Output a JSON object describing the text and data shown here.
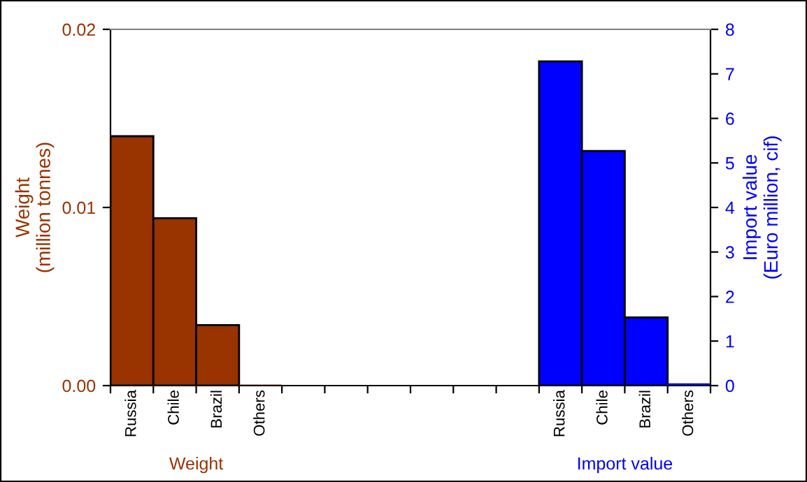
{
  "chart_data": {
    "type": "bar",
    "categories": [
      "Russia",
      "Chile",
      "Brazil",
      "Others",
      null,
      null,
      null,
      null,
      null,
      null,
      "Russia",
      "Chile",
      "Brazil",
      "Others"
    ],
    "ylabel": "Weight\n(million tonnes)",
    "y2label": "Import value\n(Euro million, cif)",
    "series": [
      {
        "color": "#993300",
        "values": [
          0.014,
          0.0094,
          0.0034,
          0,
          null,
          null,
          null,
          null,
          null,
          null,
          null,
          null,
          null,
          null
        ]
      },
      {
        "color": "#0000ff",
        "axis": "y2",
        "values": [
          null,
          null,
          null,
          null,
          null,
          null,
          null,
          null,
          null,
          null,
          7.28,
          5.27,
          1.53,
          0.03
        ]
      }
    ],
    "ylim": [
      0,
      0.02
    ],
    "yticks": [
      {
        "value": 0,
        "label": "0.00"
      },
      {
        "value": 0.01,
        "label": "0.01"
      },
      {
        "value": 0.02,
        "label": "0.02"
      }
    ],
    "y2lim": [
      0,
      8
    ],
    "y2ticks": [
      0,
      1,
      2,
      3,
      4,
      5,
      6,
      7,
      8
    ],
    "annotations": [
      "Weight",
      "Import value"
    ],
    "grid": false,
    "legend": false
  }
}
